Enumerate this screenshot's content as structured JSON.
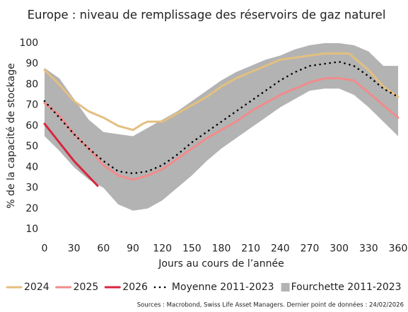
{
  "chart_data": {
    "type": "line",
    "title": "Europe : niveau de remplissage des réservoirs de gaz naturel",
    "x_label": "Jours au cours de l’année",
    "y_label": "% de la capacité de stockage",
    "source": "Sources : Macrobond, Swiss Life Asset Managers. Dernier point de données : 24/02/2026",
    "xlim": [
      -2,
      364
    ],
    "ylim": [
      5,
      102
    ],
    "xticks": [
      0,
      30,
      60,
      90,
      120,
      150,
      180,
      210,
      240,
      270,
      300,
      330,
      360
    ],
    "yticks": [
      10,
      20,
      30,
      40,
      50,
      60,
      70,
      80,
      90,
      100
    ],
    "series": [
      {
        "name": "Fourchette 2011-2023",
        "type": "band",
        "color": "#b3b3b3",
        "x": [
          0,
          15,
          30,
          45,
          60,
          75,
          90,
          105,
          120,
          135,
          150,
          165,
          180,
          195,
          210,
          225,
          240,
          255,
          270,
          285,
          300,
          315,
          330,
          345,
          360
        ],
        "upper": [
          88,
          83,
          73,
          63,
          57,
          56,
          55,
          59,
          63,
          67,
          72,
          77,
          82,
          86,
          89,
          92,
          94,
          97,
          99,
          100,
          100,
          99,
          96,
          89,
          89
        ],
        "lower": [
          55,
          48,
          40,
          34,
          30,
          22,
          19,
          20,
          24,
          30,
          36,
          43,
          49,
          54,
          59,
          64,
          69,
          73,
          77,
          78,
          78,
          75,
          69,
          62,
          55
        ]
      },
      {
        "name": "2024",
        "color": "#e3bf80",
        "style": "solid",
        "x": [
          0,
          15,
          30,
          45,
          60,
          75,
          90,
          100,
          105,
          120,
          135,
          150,
          165,
          180,
          195,
          210,
          225,
          240,
          255,
          270,
          285,
          300,
          310,
          330,
          345,
          360
        ],
        "values": [
          87,
          80,
          72,
          67,
          64,
          60,
          58,
          61,
          62,
          62,
          66,
          70,
          74,
          79,
          83,
          86,
          89,
          92,
          93,
          94,
          95,
          95,
          95,
          87,
          79,
          74
        ]
      },
      {
        "name": "2025",
        "color": "#f28b8b",
        "style": "solid",
        "x": [
          0,
          15,
          30,
          45,
          60,
          75,
          90,
          105,
          120,
          135,
          150,
          165,
          180,
          195,
          210,
          225,
          240,
          255,
          270,
          285,
          300,
          315,
          330,
          345,
          360
        ],
        "values": [
          71,
          65,
          56,
          49,
          41,
          36,
          34,
          36,
          39,
          44,
          49,
          54,
          58,
          62,
          67,
          71,
          75,
          78,
          81,
          83,
          83,
          82,
          76,
          70,
          64
        ]
      },
      {
        "name": "2026",
        "color": "#d7263d",
        "style": "solid",
        "x": [
          0,
          10,
          20,
          30,
          40,
          50,
          54
        ],
        "values": [
          61,
          55,
          49,
          43,
          38,
          33,
          31
        ]
      },
      {
        "name": "Moyenne 2011-2023",
        "color": "#000000",
        "style": "dotted",
        "x": [
          0,
          15,
          30,
          45,
          60,
          75,
          90,
          105,
          120,
          135,
          150,
          165,
          180,
          195,
          210,
          225,
          240,
          255,
          270,
          285,
          300,
          315,
          330,
          345,
          360
        ],
        "values": [
          72,
          64,
          56,
          49,
          43,
          38,
          37,
          38,
          41,
          46,
          52,
          57,
          62,
          67,
          72,
          77,
          82,
          86,
          89,
          90,
          91,
          89,
          84,
          78,
          74
        ]
      }
    ],
    "legend_order": [
      1,
      2,
      3,
      4,
      0
    ]
  }
}
